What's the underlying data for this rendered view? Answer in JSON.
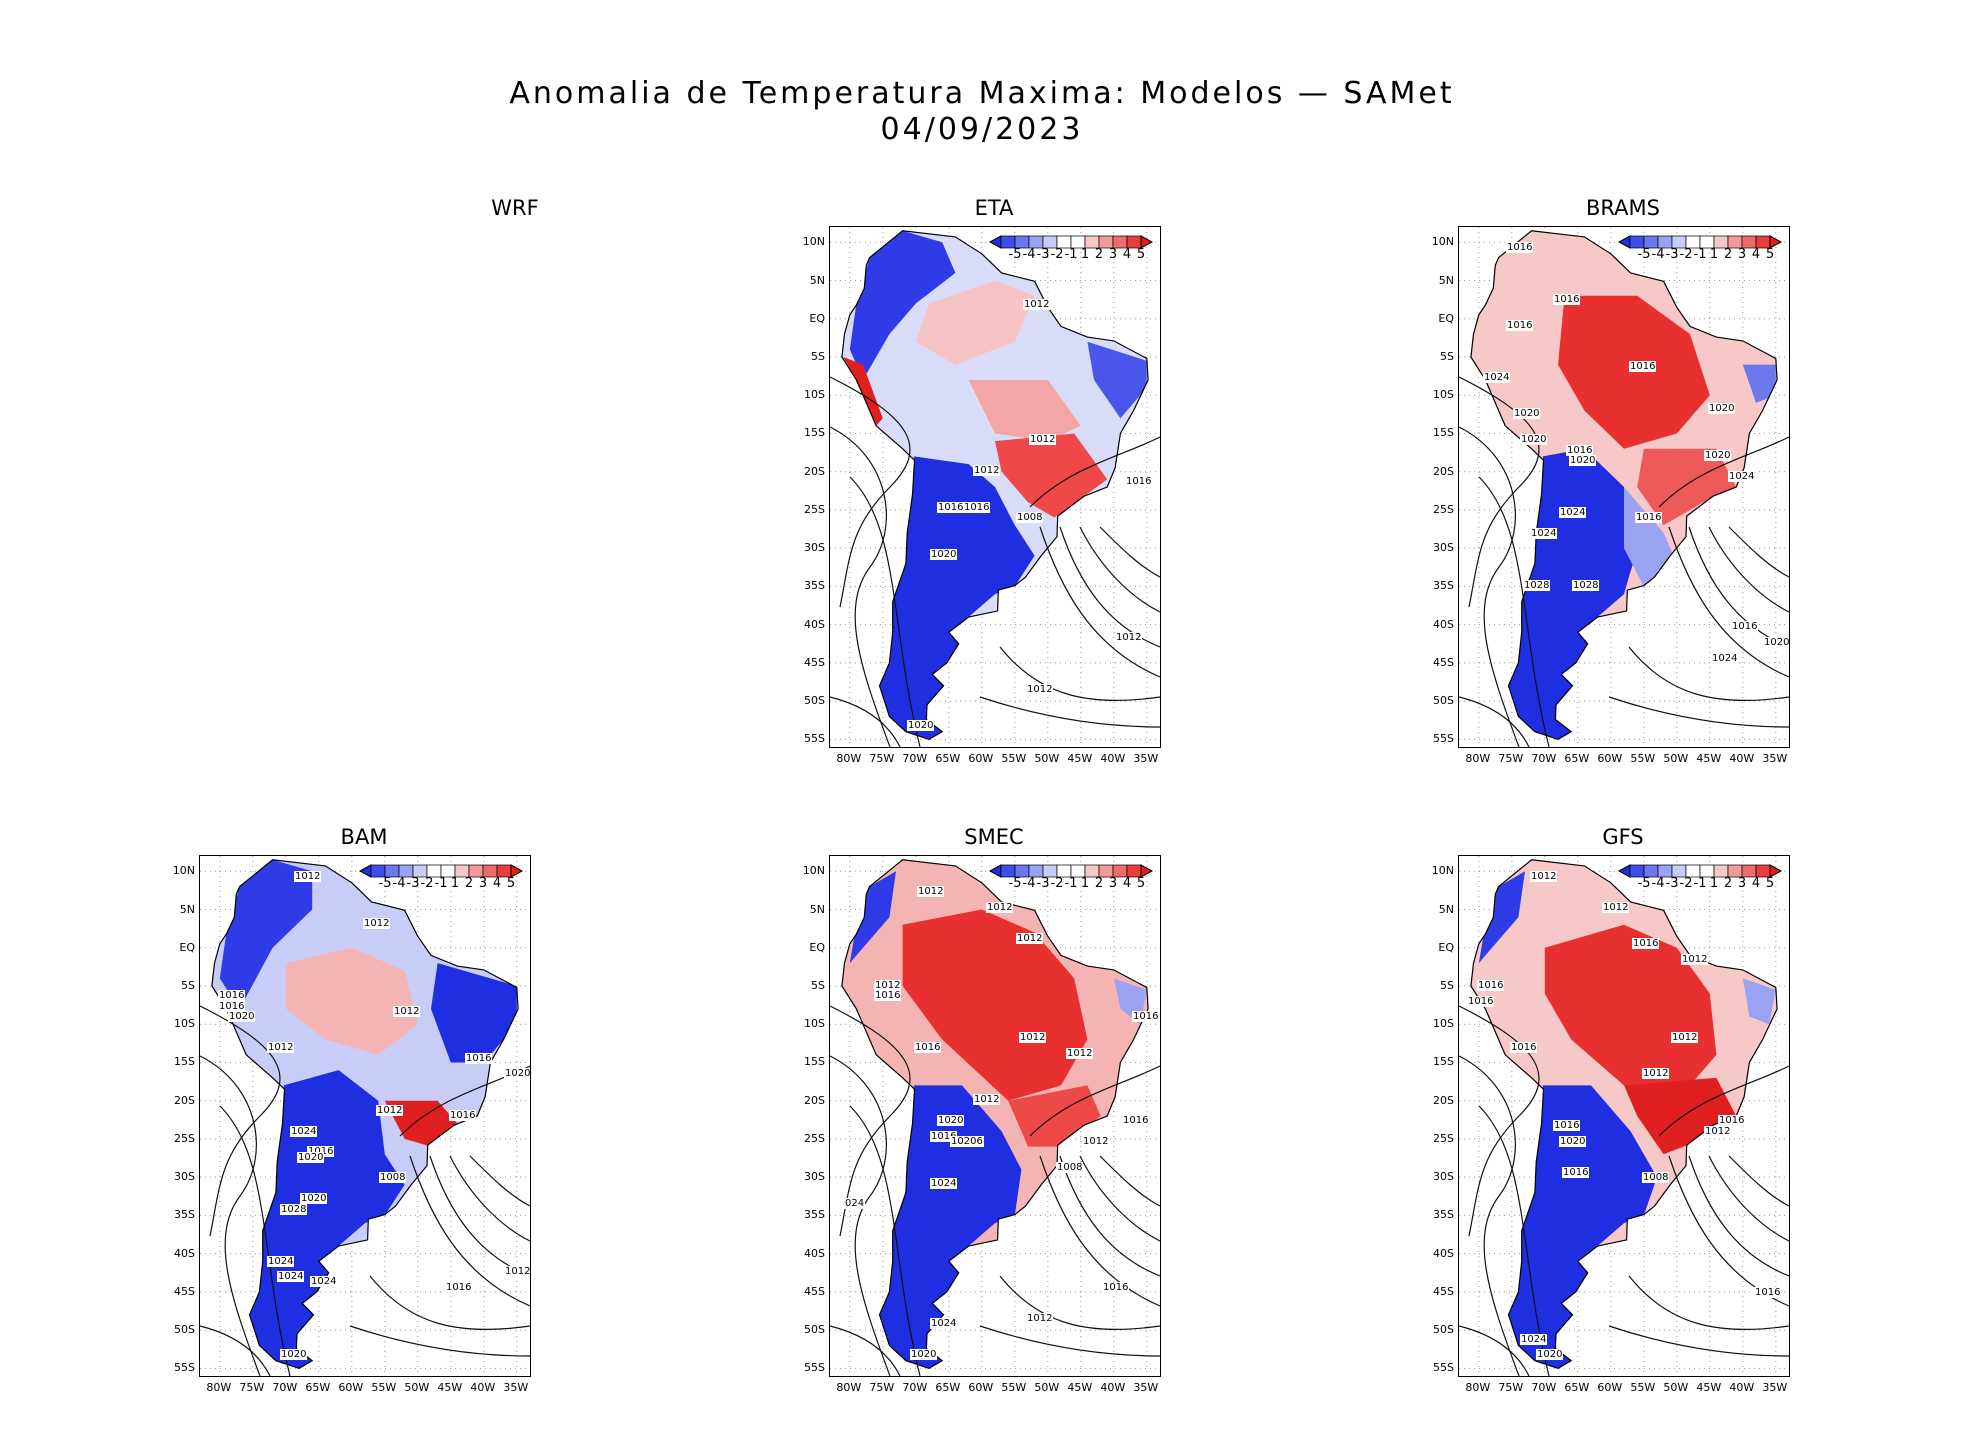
{
  "figure": {
    "title_line1": "Anomalia de Temperatura Maxima: Modelos — SAMet",
    "title_line2": "04/09/2023"
  },
  "panels": [
    {
      "name": "WRF",
      "empty": true
    },
    {
      "name": "ETA",
      "empty": false
    },
    {
      "name": "BRAMS",
      "empty": false
    },
    {
      "name": "BAM",
      "empty": false
    },
    {
      "name": "SMEC",
      "empty": false
    },
    {
      "name": "GFS",
      "empty": false
    }
  ],
  "axes": {
    "y_ticks": [
      "10N",
      "5N",
      "EQ",
      "5S",
      "10S",
      "15S",
      "20S",
      "25S",
      "30S",
      "35S",
      "40S",
      "45S",
      "50S",
      "55S"
    ],
    "x_ticks": [
      "80W",
      "75W",
      "70W",
      "65W",
      "60W",
      "55W",
      "50W",
      "45W",
      "40W",
      "35W"
    ]
  },
  "colorbar": {
    "labels": [
      "-5",
      "-4",
      "-3",
      "-2",
      "-1",
      "1",
      "2",
      "3",
      "4",
      "5"
    ],
    "colors": [
      "#1f2ee0",
      "#3d4de8",
      "#6b78ee",
      "#9aa3f2",
      "#c8cdf7",
      "#ffffff",
      "#ffffff",
      "#f7c8c8",
      "#f29a9a",
      "#ee6b6b",
      "#e83d3d",
      "#e01f1f"
    ]
  },
  "contour_labels": {
    "ETA": [
      "1012",
      "1012",
      "1016",
      "1012",
      "1016",
      "1016",
      "1008",
      "1020",
      "1012",
      "1012",
      "1020"
    ],
    "BRAMS": [
      "1016",
      "1016",
      "1016",
      "1016",
      "1024",
      "1020",
      "1020",
      "1016",
      "1020",
      "1020",
      "1020",
      "1024",
      "1024",
      "1016",
      "1024",
      "1028",
      "1028",
      "1016",
      "1020",
      "1024"
    ],
    "BAM": [
      "1012",
      "1012",
      "1016",
      "1016",
      "1020",
      "1012",
      "1012",
      "1016",
      "1020",
      "1012",
      "1016",
      "1024",
      "1016",
      "1020",
      "1008",
      "1020",
      "1028",
      "1024",
      "1024",
      "1024",
      "1012",
      "1016",
      "1020"
    ],
    "SMEC": [
      "1012",
      "1012",
      "1012",
      "1012",
      "1016",
      "1016",
      "1012",
      "1016",
      "1012",
      "1012",
      "1016",
      "1020",
      "1016",
      "10206",
      "1012",
      "1008",
      "1024",
      "024",
      "1024",
      "1012",
      "1016",
      "1020"
    ],
    "GFS": [
      "1012",
      "1012",
      "1016",
      "1012",
      "1016",
      "1016",
      "1012",
      "1016",
      "1012",
      "1016",
      "1012",
      "1016",
      "1020",
      "1008",
      "1016",
      "1024",
      "1016",
      "1020"
    ]
  }
}
